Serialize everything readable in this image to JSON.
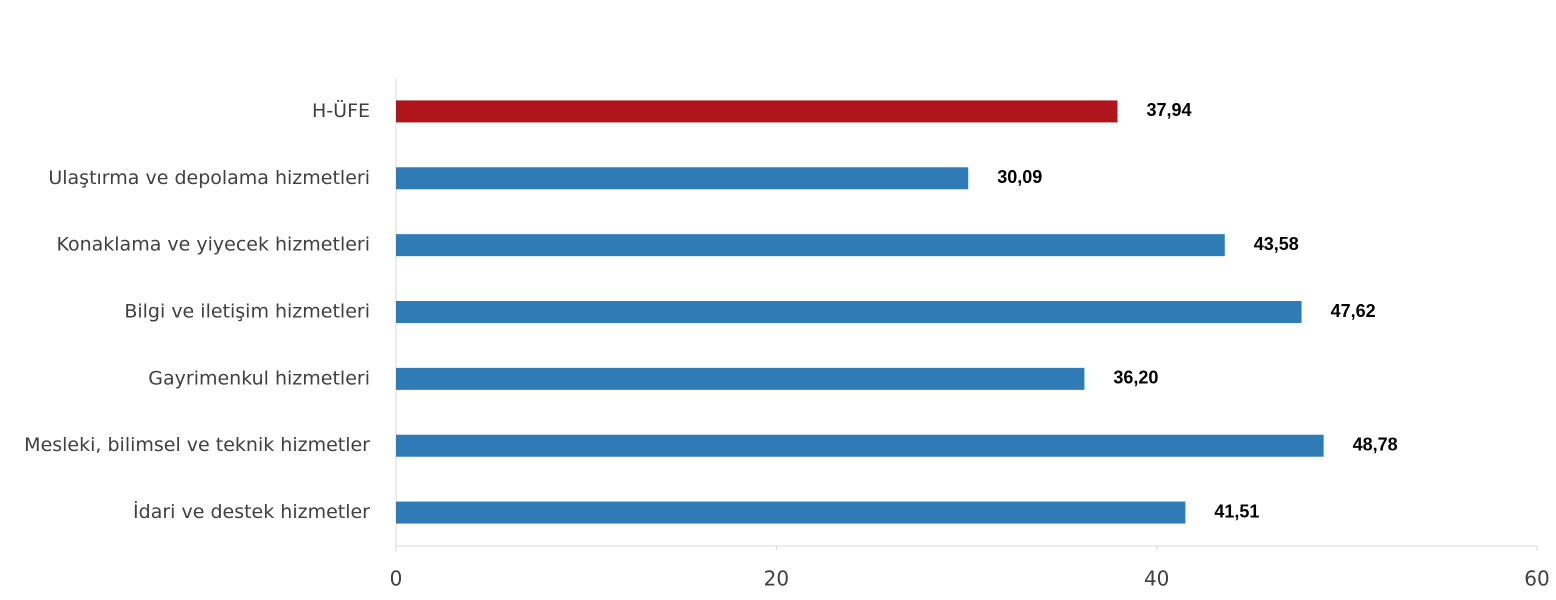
{
  "chart_data": {
    "type": "hbar",
    "categories": [
      "H-ÜFE",
      "Ulaştırma ve depolama hizmetleri",
      "Konaklama ve yiyecek hizmetleri",
      "Bilgi ve iletişim hizmetleri",
      "Gayrimenkul hizmetleri",
      "Mesleki, bilimsel ve teknik hizmetler",
      "İdari ve destek hizmetler"
    ],
    "values": [
      37.94,
      30.09,
      43.58,
      47.62,
      36.2,
      48.78,
      41.51
    ],
    "value_labels": [
      "37,94",
      "30,09",
      "43,58",
      "47,62",
      "36,20",
      "48,78",
      "41,51"
    ],
    "colors": [
      "#ae161c",
      "#2f7bb6",
      "#2f7bb6",
      "#2f7bb6",
      "#2f7bb6",
      "#2f7bb6",
      "#2f7bb6"
    ],
    "xlim": [
      0,
      60
    ],
    "xticks": [
      0,
      20,
      40,
      60
    ],
    "grid": false
  }
}
